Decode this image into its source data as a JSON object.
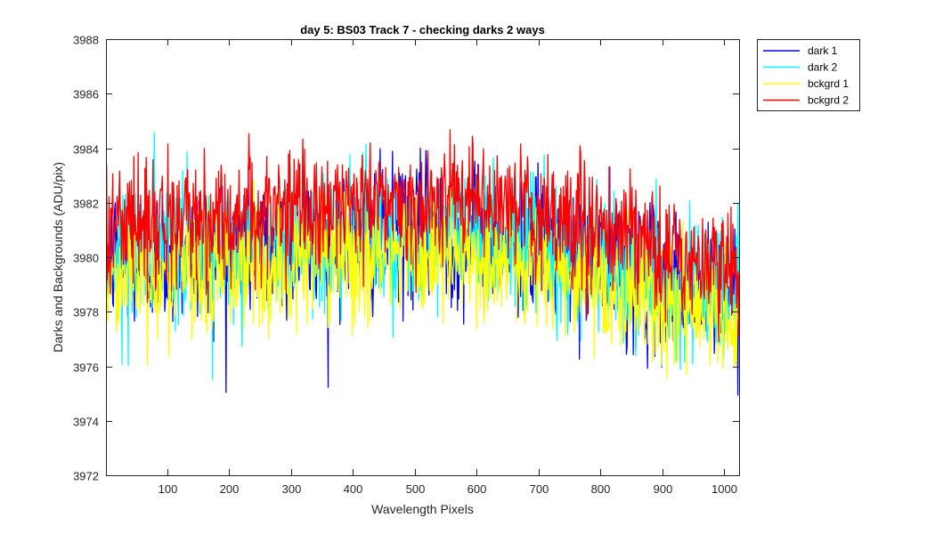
{
  "chart_data": {
    "type": "line",
    "title": "day 5: BS03  Track 7  - checking darks 2 ways",
    "xlabel": "Wavelength Pixels",
    "ylabel": "Darks and Backgrounds (ADU/pix)",
    "xlim": [
      1,
      1024
    ],
    "ylim": [
      3972,
      3988
    ],
    "xticks": [
      100,
      200,
      300,
      400,
      500,
      600,
      700,
      800,
      900,
      1000
    ],
    "yticks": [
      3972,
      3974,
      3976,
      3978,
      3980,
      3982,
      3984,
      3986,
      3988
    ],
    "grid": false,
    "legend_position": "outside top-right",
    "series": [
      {
        "name": "dark 1",
        "color": "#0000ff",
        "trend": [
          [
            1,
            3980.0
          ],
          [
            100,
            3980.1
          ],
          [
            200,
            3980.3
          ],
          [
            300,
            3980.5
          ],
          [
            400,
            3980.8
          ],
          [
            500,
            3980.9
          ],
          [
            600,
            3980.8
          ],
          [
            700,
            3980.4
          ],
          [
            800,
            3979.8
          ],
          [
            900,
            3979.0
          ],
          [
            1000,
            3978.6
          ],
          [
            1024,
            3978.5
          ]
        ],
        "noise_sd": 1.3,
        "min": 3974.3,
        "max": 3985.6
      },
      {
        "name": "dark 2",
        "color": "#00ffff",
        "trend": [
          [
            1,
            3980.0
          ],
          [
            100,
            3980.1
          ],
          [
            200,
            3980.3
          ],
          [
            300,
            3980.5
          ],
          [
            400,
            3980.8
          ],
          [
            500,
            3980.9
          ],
          [
            600,
            3980.8
          ],
          [
            700,
            3980.4
          ],
          [
            800,
            3979.8
          ],
          [
            900,
            3979.0
          ],
          [
            1000,
            3978.6
          ],
          [
            1024,
            3978.5
          ]
        ],
        "noise_sd": 1.3,
        "min": 3974.6,
        "max": 3985.2
      },
      {
        "name": "bckgrd 1",
        "color": "#ffff00",
        "trend": [
          [
            1,
            3979.4
          ],
          [
            100,
            3979.4
          ],
          [
            200,
            3979.6
          ],
          [
            300,
            3979.8
          ],
          [
            400,
            3980.0
          ],
          [
            500,
            3980.1
          ],
          [
            600,
            3980.0
          ],
          [
            700,
            3979.6
          ],
          [
            800,
            3979.1
          ],
          [
            900,
            3978.4
          ],
          [
            1000,
            3977.9
          ],
          [
            1024,
            3977.8
          ]
        ],
        "noise_sd": 1.2,
        "min": 3973.7,
        "max": 3984.7
      },
      {
        "name": "bckgrd 2",
        "color": "#ff0000",
        "trend": [
          [
            1,
            3981.3
          ],
          [
            100,
            3981.3
          ],
          [
            200,
            3981.5
          ],
          [
            300,
            3981.7
          ],
          [
            400,
            3982.0
          ],
          [
            500,
            3982.1
          ],
          [
            600,
            3982.0
          ],
          [
            700,
            3981.6
          ],
          [
            800,
            3981.0
          ],
          [
            900,
            3980.2
          ],
          [
            1000,
            3979.6
          ],
          [
            1024,
            3979.5
          ]
        ],
        "noise_sd": 1.1,
        "min": 3975.4,
        "max": 3986.1
      }
    ]
  }
}
